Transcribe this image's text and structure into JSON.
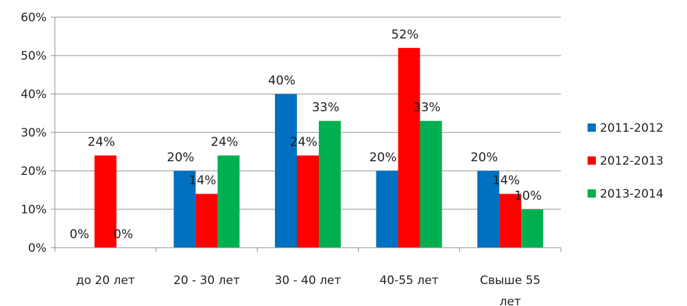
{
  "chart_data": {
    "type": "bar",
    "categories": [
      "до 20 лет",
      "20 - 30 лет",
      "30 - 40 лет",
      "40-55 лет",
      "Свыше 55 лет"
    ],
    "category_lines": [
      [
        "до 20 лет"
      ],
      [
        "20 - 30 лет"
      ],
      [
        "30 - 40 лет"
      ],
      [
        "40-55 лет"
      ],
      [
        "Свыше 55",
        "лет"
      ]
    ],
    "series": [
      {
        "name": "2011-2012",
        "color": "#0070C0",
        "values": [
          0,
          20,
          40,
          20,
          20
        ],
        "labels": [
          "0%",
          "20%",
          "40%",
          "20%",
          "20%"
        ]
      },
      {
        "name": "2012-2013",
        "color": "#FF0000",
        "values": [
          24,
          14,
          24,
          52,
          14
        ],
        "labels": [
          "24%",
          "14%",
          "24%",
          "52%",
          "14%"
        ]
      },
      {
        "name": "2013-2014",
        "color": "#00B050",
        "values": [
          0,
          24,
          33,
          33,
          10
        ],
        "labels": [
          "0%",
          "24%",
          "33%",
          "33%",
          "10%"
        ]
      }
    ],
    "ylim": [
      0,
      60
    ],
    "yticks": [
      0,
      10,
      20,
      30,
      40,
      50,
      60
    ],
    "ytick_labels": [
      "0%",
      "10%",
      "20%",
      "30%",
      "40%",
      "50%",
      "60%"
    ],
    "grid": true,
    "legend_position": "right",
    "title": "",
    "xlabel": "",
    "ylabel": ""
  }
}
